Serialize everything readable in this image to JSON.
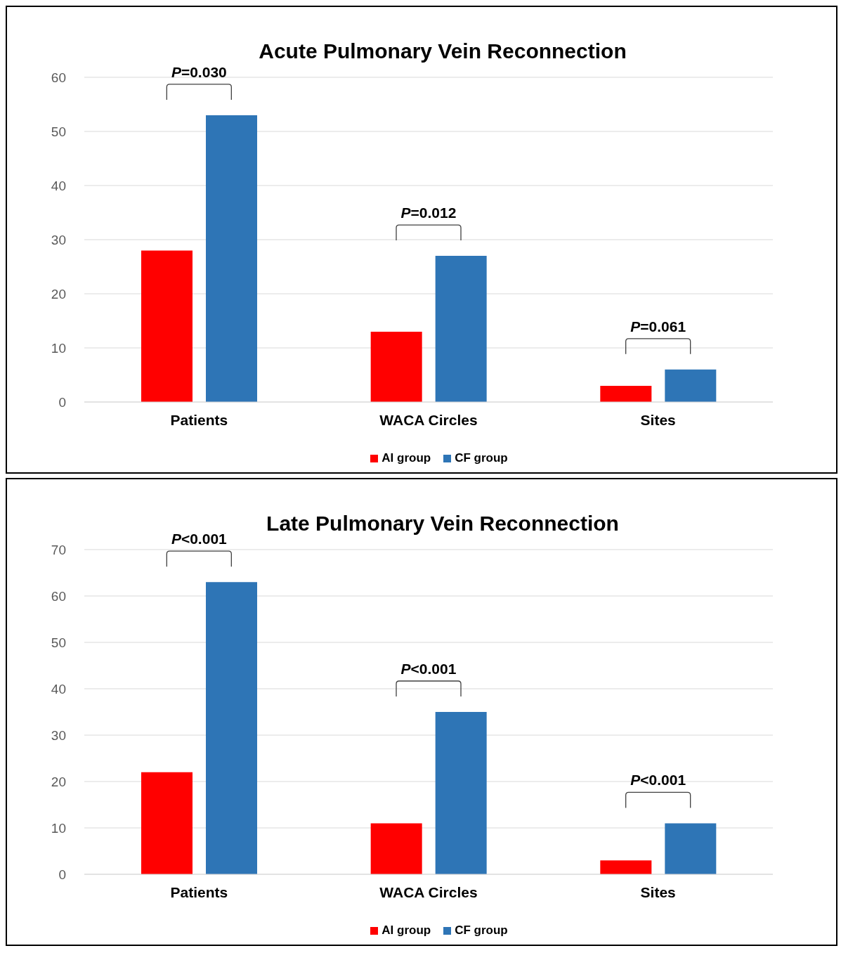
{
  "chart_data": [
    {
      "type": "bar",
      "title": "Acute Pulmonary Vein Reconnection",
      "categories": [
        "Patients",
        "WACA Circles",
        "Sites"
      ],
      "series": [
        {
          "name": "AI group",
          "color": "#ff0000",
          "values": [
            28,
            13,
            3
          ]
        },
        {
          "name": "CF group",
          "color": "#2e75b6",
          "values": [
            53,
            27,
            6
          ]
        }
      ],
      "ylim": [
        0,
        60
      ],
      "yticks": [
        0,
        10,
        20,
        30,
        40,
        50,
        60
      ],
      "grid": "y",
      "legend": "bottom",
      "annotations": [
        "P=0.030",
        "P=0.012",
        "P=0.061"
      ]
    },
    {
      "type": "bar",
      "title": "Late Pulmonary Vein Reconnection",
      "categories": [
        "Patients",
        "WACA Circles",
        "Sites"
      ],
      "series": [
        {
          "name": "AI group",
          "color": "#ff0000",
          "values": [
            22,
            11,
            3
          ]
        },
        {
          "name": "CF group",
          "color": "#2e75b6",
          "values": [
            63,
            35,
            11
          ]
        }
      ],
      "ylim": [
        0,
        70
      ],
      "yticks": [
        0,
        10,
        20,
        30,
        40,
        50,
        60,
        70
      ],
      "grid": "y",
      "legend": "bottom",
      "annotations": [
        "P<0.001",
        "P<0.001",
        "P<0.001"
      ]
    }
  ]
}
